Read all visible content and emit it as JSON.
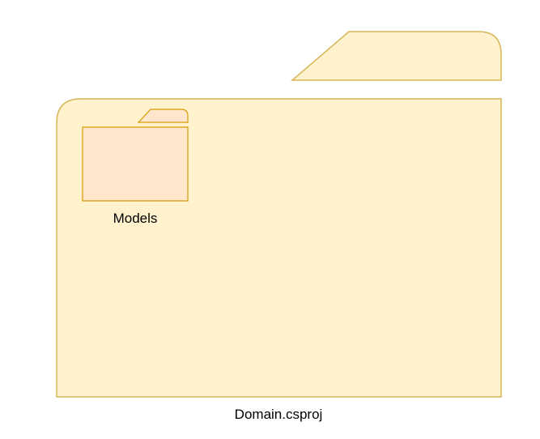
{
  "colors": {
    "big_folder_fill": "#fff2cc",
    "big_folder_stroke": "#d6b656",
    "small_folder_fill": "#ffe6cc",
    "small_folder_stroke": "#d79b00"
  },
  "project_folder": {
    "icon": "folder-icon",
    "label": "Domain.csproj"
  },
  "models_folder": {
    "icon": "folder-icon",
    "label": "Models"
  }
}
